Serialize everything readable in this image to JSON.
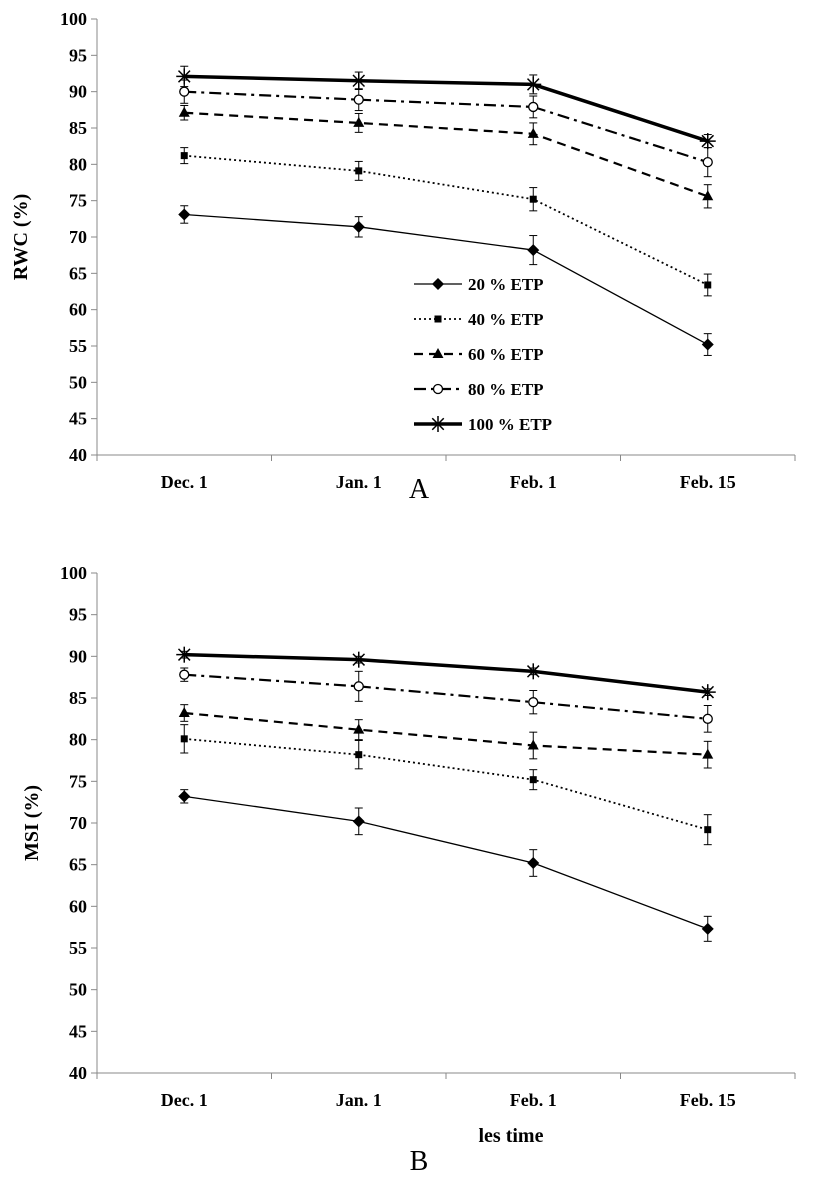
{
  "chart_data": [
    {
      "type": "line",
      "panel_label": "A",
      "title": "",
      "xlabel": "",
      "ylabel": "RWC (%)",
      "ylim": [
        40,
        100
      ],
      "yticks": [
        40,
        45,
        50,
        55,
        60,
        65,
        70,
        75,
        80,
        85,
        90,
        95,
        100
      ],
      "categories": [
        "Dec. 1",
        "Jan. 1",
        "Feb. 1",
        "Feb. 15"
      ],
      "grid": false,
      "legend_position": "lower-right inside",
      "series": [
        {
          "name": "20 % ETP",
          "values": [
            73.1,
            71.4,
            68.2,
            55.2
          ],
          "errors": [
            1.2,
            1.4,
            2.0,
            1.5
          ],
          "marker": "diamond",
          "line_style": "solid-thin"
        },
        {
          "name": "40 % ETP",
          "values": [
            81.2,
            79.1,
            75.2,
            63.4
          ],
          "errors": [
            1.1,
            1.3,
            1.6,
            1.5
          ],
          "marker": "square",
          "line_style": "dotted"
        },
        {
          "name": "60 % ETP",
          "values": [
            87.1,
            85.7,
            84.2,
            75.6
          ],
          "errors": [
            1.0,
            1.3,
            1.5,
            1.6
          ],
          "marker": "triangle",
          "line_style": "dashed"
        },
        {
          "name": "80 % ETP",
          "values": [
            90.0,
            88.9,
            87.9,
            80.3
          ],
          "errors": [
            1.6,
            1.5,
            1.5,
            2.0
          ],
          "marker": "open-circle",
          "line_style": "dash-dot"
        },
        {
          "name": "100 % ETP",
          "values": [
            92.1,
            91.5,
            91.0,
            83.2
          ],
          "errors": [
            1.4,
            1.2,
            1.3,
            0.9
          ],
          "marker": "asterisk",
          "line_style": "solid-thick"
        }
      ]
    },
    {
      "type": "line",
      "panel_label": "B",
      "title": "",
      "xlabel": "les time",
      "ylabel": "MSI (%)",
      "ylim": [
        40,
        100
      ],
      "yticks": [
        40,
        45,
        50,
        55,
        60,
        65,
        70,
        75,
        80,
        85,
        90,
        95,
        100
      ],
      "categories": [
        "Dec. 1",
        "Jan. 1",
        "Feb. 1",
        "Feb. 15"
      ],
      "grid": false,
      "legend_position": "none",
      "series": [
        {
          "name": "20 % ETP",
          "values": [
            73.2,
            70.2,
            65.2,
            57.3
          ],
          "errors": [
            0.8,
            1.6,
            1.6,
            1.5
          ],
          "marker": "diamond",
          "line_style": "solid-thin"
        },
        {
          "name": "40 % ETP",
          "values": [
            80.1,
            78.2,
            75.2,
            69.2
          ],
          "errors": [
            1.7,
            1.7,
            1.2,
            1.8
          ],
          "marker": "square",
          "line_style": "dotted"
        },
        {
          "name": "60 % ETP",
          "values": [
            83.2,
            81.2,
            79.3,
            78.2
          ],
          "errors": [
            1.0,
            1.2,
            1.6,
            1.6
          ],
          "marker": "triangle",
          "line_style": "dashed"
        },
        {
          "name": "80 % ETP",
          "values": [
            87.8,
            86.4,
            84.5,
            82.5
          ],
          "errors": [
            0.8,
            1.8,
            1.4,
            1.6
          ],
          "marker": "open-circle",
          "line_style": "dash-dot"
        },
        {
          "name": "100 % ETP",
          "values": [
            90.2,
            89.6,
            88.2,
            85.7
          ],
          "errors": [
            0.4,
            0.4,
            0.4,
            0.4
          ],
          "marker": "asterisk",
          "line_style": "solid-thick"
        }
      ]
    }
  ]
}
